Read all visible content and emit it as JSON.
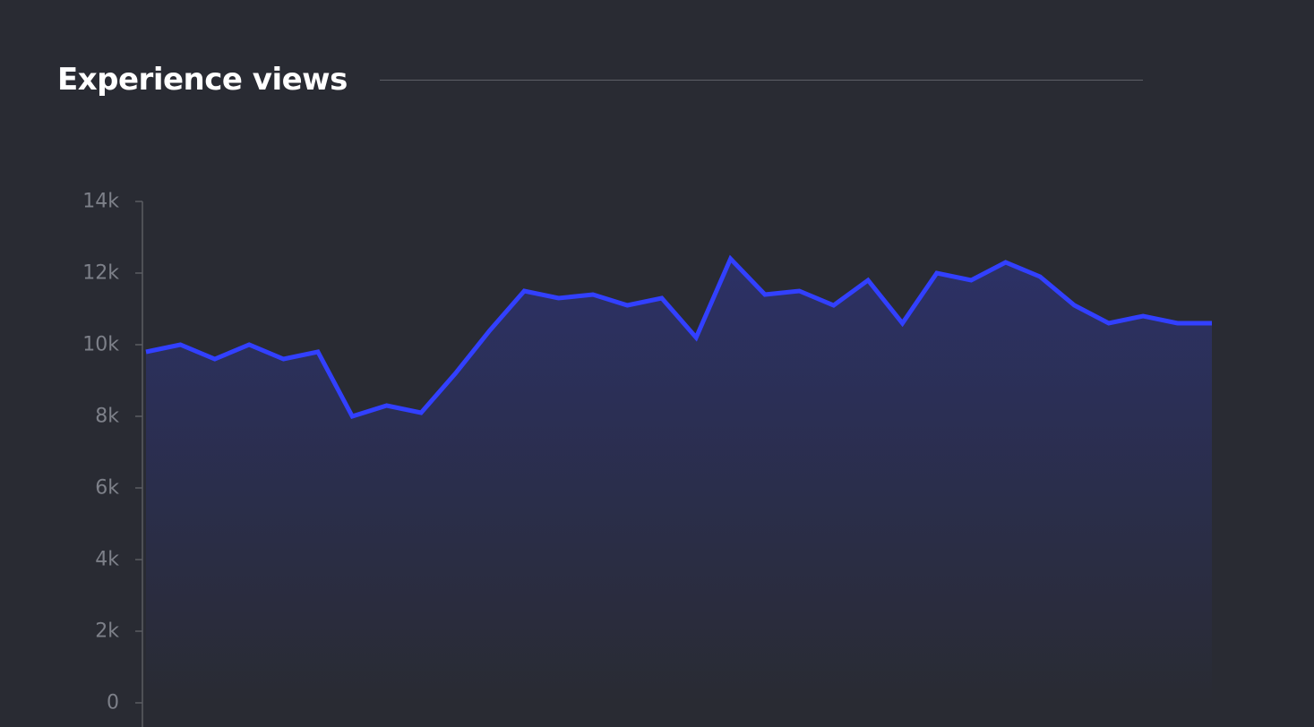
{
  "header": {
    "title": "Experience views"
  },
  "colors": {
    "background": "#292b33",
    "line": "#3240ff",
    "area_top": "#2c3166",
    "axis": "#5a5c63",
    "tick_text": "#7d8089",
    "title_rule": "#5d5f66"
  },
  "chart_data": {
    "type": "area",
    "title": "Experience views",
    "xlabel": "",
    "ylabel": "",
    "ylim": [
      0,
      14000
    ],
    "y_ticks": [
      {
        "value": 0,
        "label": "0"
      },
      {
        "value": 2000,
        "label": "2k"
      },
      {
        "value": 4000,
        "label": "4k"
      },
      {
        "value": 6000,
        "label": "6k"
      },
      {
        "value": 8000,
        "label": "8k"
      },
      {
        "value": 10000,
        "label": "10k"
      },
      {
        "value": 12000,
        "label": "12k"
      },
      {
        "value": 14000,
        "label": "14k"
      }
    ],
    "grid": false,
    "legend": "none",
    "series": [
      {
        "values": [
          9800,
          10000,
          9600,
          10000,
          9600,
          9800,
          8000,
          8300,
          8100,
          9200,
          10400,
          11500,
          11300,
          11400,
          11100,
          11300,
          10200,
          12400,
          11400,
          11500,
          11100,
          11800,
          10600,
          12000,
          11800,
          12300,
          11900,
          11100,
          10600,
          10800,
          10600,
          10600
        ]
      }
    ]
  }
}
